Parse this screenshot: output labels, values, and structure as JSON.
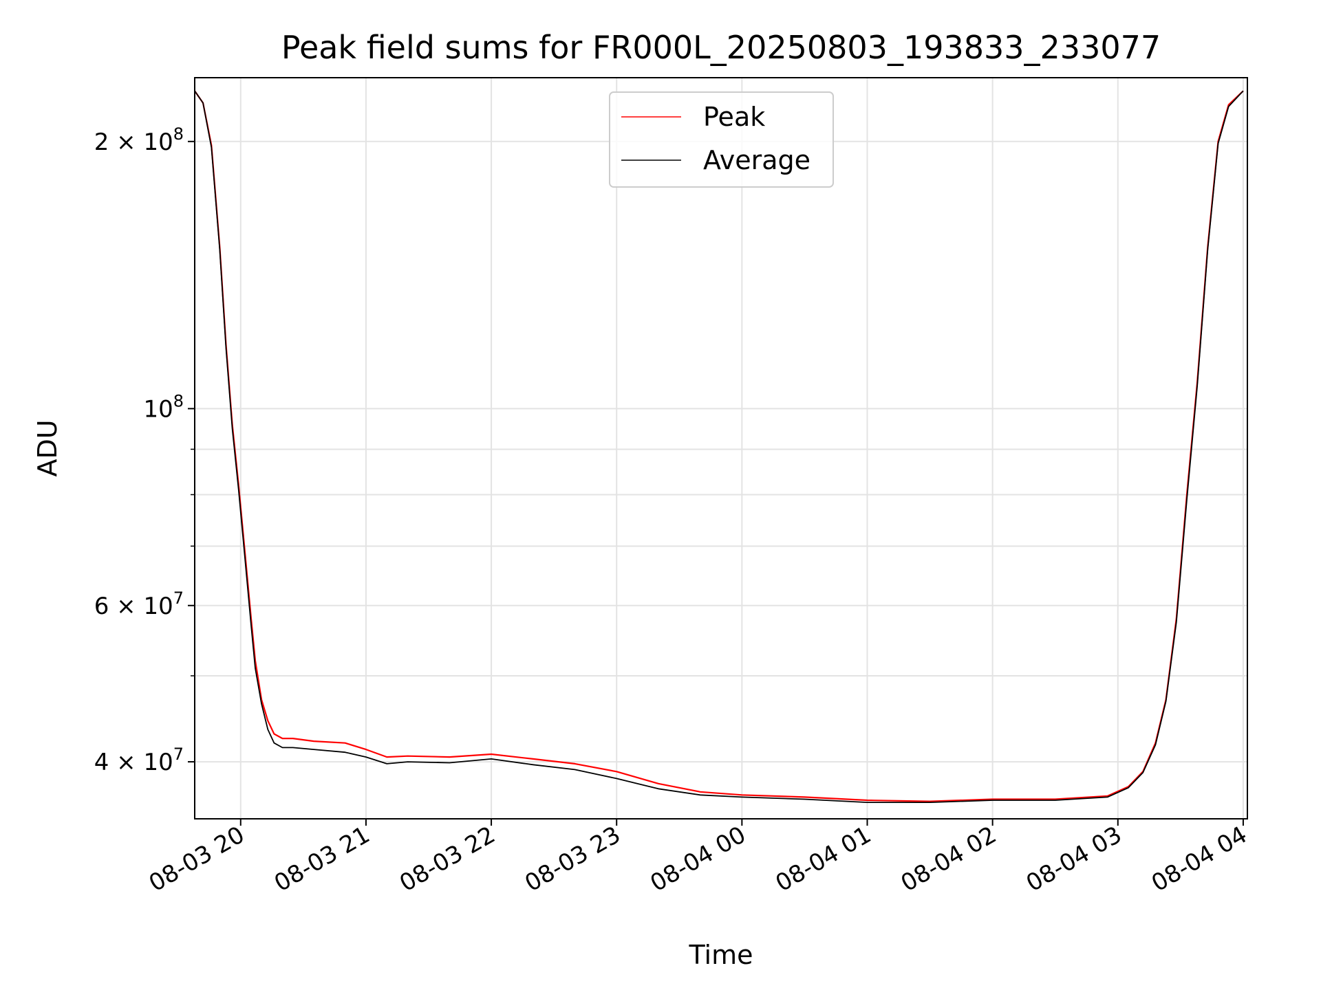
{
  "chart_data": {
    "type": "line",
    "title": "Peak field sums for FR000L_20250803_193833_233077",
    "xlabel": "Time",
    "ylabel": "ADU",
    "y_scale": "log",
    "ylim": [
      34500000,
      236000000
    ],
    "xlim": [
      "2025-08-03 19:38",
      "2025-08-04 04:02"
    ],
    "grid": true,
    "legend_position": "upper center",
    "x_tick_labels": [
      "08-03 20",
      "08-03 21",
      "08-03 22",
      "08-03 23",
      "08-04 00",
      "08-04 01",
      "08-04 02",
      "08-04 03",
      "08-04 04"
    ],
    "x_ticks": [
      "2025-08-03 20:00",
      "2025-08-03 21:00",
      "2025-08-03 22:00",
      "2025-08-03 23:00",
      "2025-08-04 00:00",
      "2025-08-04 01:00",
      "2025-08-04 02:00",
      "2025-08-04 03:00",
      "2025-08-04 04:00"
    ],
    "y_tick_labels": [
      {
        "value": 40000000,
        "mantissa": "4",
        "exp": "7"
      },
      {
        "value": 60000000,
        "mantissa": "6",
        "exp": "7"
      },
      {
        "value": 100000000,
        "mantissa": "",
        "exp": "8"
      },
      {
        "value": 200000000,
        "mantissa": "2",
        "exp": "8"
      }
    ],
    "y_minor_ticks": [
      50000000,
      70000000,
      80000000,
      90000000
    ],
    "series": [
      {
        "name": "Peak",
        "color": "#ff0000",
        "x": [
          "2025-08-03 19:38",
          "2025-08-03 19:42",
          "2025-08-03 19:46",
          "2025-08-03 19:50",
          "2025-08-03 19:53",
          "2025-08-03 19:56",
          "2025-08-03 19:59",
          "2025-08-03 20:02",
          "2025-08-03 20:05",
          "2025-08-03 20:07",
          "2025-08-03 20:10",
          "2025-08-03 20:13",
          "2025-08-03 20:16",
          "2025-08-03 20:20",
          "2025-08-03 20:25",
          "2025-08-03 20:35",
          "2025-08-03 20:50",
          "2025-08-03 21:00",
          "2025-08-03 21:10",
          "2025-08-03 21:20",
          "2025-08-03 21:40",
          "2025-08-03 22:00",
          "2025-08-03 22:20",
          "2025-08-03 22:40",
          "2025-08-03 23:00",
          "2025-08-03 23:20",
          "2025-08-03 23:40",
          "2025-08-04 00:00",
          "2025-08-04 00:30",
          "2025-08-04 01:00",
          "2025-08-04 01:30",
          "2025-08-04 02:00",
          "2025-08-04 02:30",
          "2025-08-04 02:55",
          "2025-08-04 03:05",
          "2025-08-04 03:12",
          "2025-08-04 03:18",
          "2025-08-04 03:23",
          "2025-08-04 03:28",
          "2025-08-04 03:33",
          "2025-08-04 03:38",
          "2025-08-04 03:43",
          "2025-08-04 03:48",
          "2025-08-04 03:53",
          "2025-08-04 04:00"
        ],
        "y": [
          228000000,
          221000000,
          198000000,
          152000000,
          118000000,
          96000000,
          82000000,
          69000000,
          58000000,
          52000000,
          47000000,
          44500000,
          43000000,
          42500000,
          42500000,
          42200000,
          42000000,
          41300000,
          40500000,
          40600000,
          40500000,
          40800000,
          40300000,
          39800000,
          39000000,
          37800000,
          37000000,
          36700000,
          36500000,
          36200000,
          36100000,
          36300000,
          36300000,
          36600000,
          37500000,
          39000000,
          42000000,
          47000000,
          58000000,
          80000000,
          107000000,
          152000000,
          200000000,
          220000000,
          228000000
        ]
      },
      {
        "name": "Average",
        "color": "#000000",
        "x": [
          "2025-08-03 19:38",
          "2025-08-03 19:42",
          "2025-08-03 19:46",
          "2025-08-03 19:50",
          "2025-08-03 19:53",
          "2025-08-03 19:56",
          "2025-08-03 19:59",
          "2025-08-03 20:02",
          "2025-08-03 20:05",
          "2025-08-03 20:07",
          "2025-08-03 20:10",
          "2025-08-03 20:13",
          "2025-08-03 20:16",
          "2025-08-03 20:20",
          "2025-08-03 20:25",
          "2025-08-03 20:35",
          "2025-08-03 20:50",
          "2025-08-03 21:00",
          "2025-08-03 21:10",
          "2025-08-03 21:20",
          "2025-08-03 21:40",
          "2025-08-03 22:00",
          "2025-08-03 22:20",
          "2025-08-03 22:40",
          "2025-08-03 23:00",
          "2025-08-03 23:20",
          "2025-08-03 23:40",
          "2025-08-04 00:00",
          "2025-08-04 00:30",
          "2025-08-04 01:00",
          "2025-08-04 01:30",
          "2025-08-04 02:00",
          "2025-08-04 02:30",
          "2025-08-04 02:55",
          "2025-08-04 03:05",
          "2025-08-04 03:12",
          "2025-08-04 03:18",
          "2025-08-04 03:23",
          "2025-08-04 03:28",
          "2025-08-04 03:33",
          "2025-08-04 03:38",
          "2025-08-04 03:43",
          "2025-08-04 03:48",
          "2025-08-04 03:53",
          "2025-08-04 04:00"
        ],
        "y": [
          228000000,
          221000000,
          197000000,
          151000000,
          117000000,
          95000000,
          81000000,
          68000000,
          57000000,
          51000000,
          46500000,
          43500000,
          42000000,
          41500000,
          41500000,
          41300000,
          41000000,
          40500000,
          39800000,
          40000000,
          39900000,
          40300000,
          39700000,
          39200000,
          38300000,
          37300000,
          36700000,
          36500000,
          36300000,
          36000000,
          36000000,
          36200000,
          36200000,
          36500000,
          37400000,
          38900000,
          41800000,
          46800000,
          57500000,
          79000000,
          106000000,
          151000000,
          199000000,
          219000000,
          228000000
        ]
      }
    ]
  }
}
